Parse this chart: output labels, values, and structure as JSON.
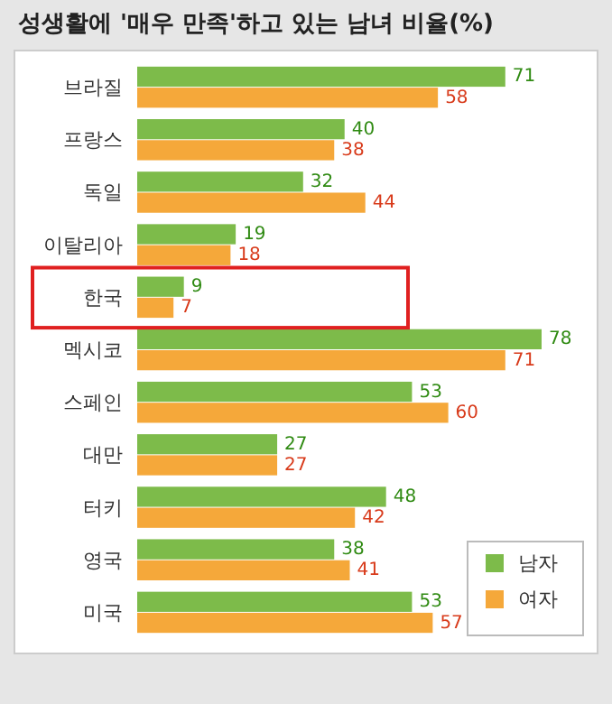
{
  "chart_data": {
    "type": "bar",
    "orientation": "horizontal",
    "title": "성생활에 '매우 만족'하고 있는 남녀 비율(%)",
    "categories": [
      "브라질",
      "프랑스",
      "독일",
      "이탈리아",
      "한국",
      "멕시코",
      "스페인",
      "대만",
      "터키",
      "영국",
      "미국"
    ],
    "series": [
      {
        "name": "남자",
        "color": "#7dbb4a",
        "values": [
          71,
          40,
          32,
          19,
          9,
          78,
          53,
          27,
          48,
          38,
          53
        ]
      },
      {
        "name": "여자",
        "color": "#f5a83a",
        "values": [
          58,
          38,
          44,
          18,
          7,
          71,
          60,
          27,
          42,
          41,
          57
        ]
      }
    ],
    "data_labels": true,
    "legend": "bottom right"
  }
}
